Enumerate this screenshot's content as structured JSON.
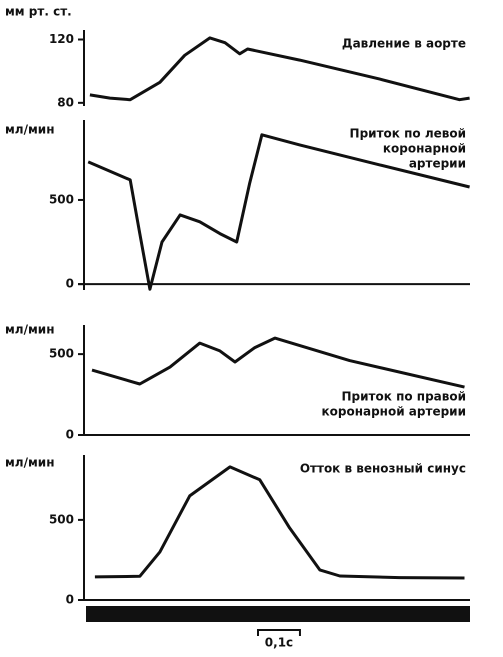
{
  "chart_data": [
    {
      "type": "line",
      "y_label": "мм рт. ст.",
      "title": [
        "Давление в аорте"
      ],
      "x": [
        0.014,
        0.062,
        0.11,
        0.181,
        0.24,
        0.3,
        0.336,
        0.371,
        0.39,
        0.514,
        0.705,
        0.895,
        0.919
      ],
      "values": [
        85,
        83,
        82,
        93,
        110,
        121,
        118,
        111,
        114,
        107,
        95,
        82,
        83
      ],
      "xlim": [
        0,
        0.92
      ],
      "ylim": [
        78,
        126
      ],
      "yticks": [
        80,
        120
      ],
      "color": "#111111"
    },
    {
      "type": "line",
      "y_label": "мл/мин",
      "title": [
        "Приток по левой",
        "коронарной",
        "артерии"
      ],
      "x": [
        0.01,
        0.11,
        0.133,
        0.157,
        0.186,
        0.229,
        0.276,
        0.324,
        0.364,
        0.395,
        0.424,
        0.514,
        0.705,
        0.919
      ],
      "values": [
        726,
        619,
        300,
        -30,
        250,
        411,
        370,
        300,
        250,
        600,
        887,
        827,
        708,
        577
      ],
      "xlim": [
        0,
        0.92
      ],
      "ylim": [
        -35,
        975
      ],
      "yticks": [
        0,
        500
      ],
      "color": "#111111"
    },
    {
      "type": "line",
      "y_label": "мл/мин",
      "title": [
        "Приток по правой",
        "коронарной артерии"
      ],
      "x": [
        0.019,
        0.133,
        0.205,
        0.276,
        0.324,
        0.36,
        0.407,
        0.455,
        0.633,
        0.907
      ],
      "values": [
        401,
        315,
        420,
        568,
        520,
        451,
        540,
        599,
        460,
        296
      ],
      "xlim": [
        0,
        0.92
      ],
      "ylim": [
        0,
        680
      ],
      "yticks": [
        0,
        500
      ],
      "color": "#111111"
    },
    {
      "type": "line",
      "y_label": "мл/мин",
      "title": [
        "Отток в венозный синус"
      ],
      "x": [
        0.026,
        0.133,
        0.181,
        0.252,
        0.348,
        0.419,
        0.49,
        0.562,
        0.61,
        0.752,
        0.907
      ],
      "values": [
        144,
        148,
        300,
        650,
        831,
        750,
        450,
        188,
        150,
        140,
        137
      ],
      "xlim": [
        0,
        0.92
      ],
      "ylim": [
        0,
        905
      ],
      "yticks": [
        0,
        500
      ],
      "color": "#111111"
    }
  ],
  "scale_bar": {
    "length": 0.1,
    "label": "0,1с"
  }
}
